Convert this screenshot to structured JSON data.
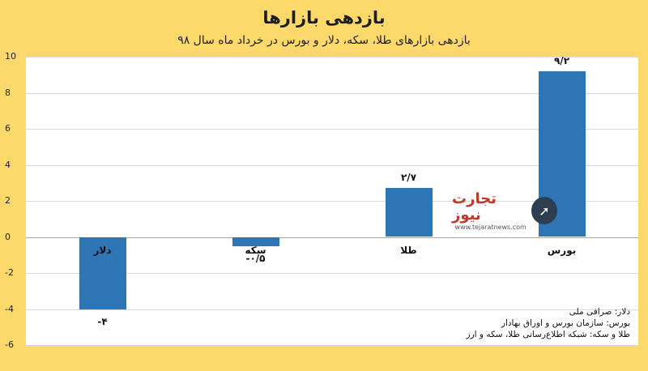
{
  "header": {
    "title": "بازدهی بازارها",
    "subtitle": "بازدهی بازارهای طلا، سکه، دلار و بورس در خرداد ماه سال ۹۸"
  },
  "chart_data": {
    "type": "bar",
    "categories": [
      "دلار",
      "سکه",
      "طلا",
      "بورس"
    ],
    "values": [
      -4,
      -0.5,
      2.7,
      9.2
    ],
    "value_labels": [
      "-۴",
      "-۰/۵",
      "۲/۷",
      "۹/۲"
    ],
    "ylim": [
      -6,
      10
    ],
    "yticks": [
      10,
      8,
      6,
      4,
      2,
      0,
      -2,
      -4,
      -6
    ],
    "ytick_labels": [
      "10",
      "8",
      "6",
      "4",
      "2",
      "0",
      "-2",
      "-4",
      "-6"
    ],
    "bar_color": "#2e75b6",
    "grid": true
  },
  "logo": {
    "name": "تجارت نیوز",
    "url": "www.tejaratnews.com"
  },
  "sources": [
    "دلار: صرافی ملی",
    "بورس: سازمان بورس و اوراق بهادار",
    "طلا و سکه: شبکه اطلاع‌رسانی طلا، سکه و ارز"
  ],
  "colors": {
    "background": "#fcd96a",
    "plot_background": "#ffffff",
    "bar": "#2e75b6"
  }
}
